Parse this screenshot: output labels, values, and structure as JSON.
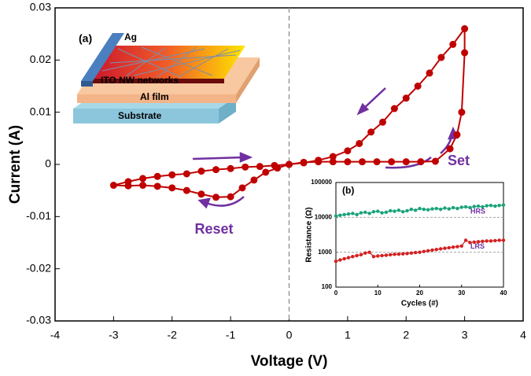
{
  "chart_data": [
    {
      "type": "line",
      "x_label": "Voltage (V)",
      "y_label": "Current (A)",
      "xlim": [
        -4,
        4
      ],
      "xticks": [
        -4,
        -3,
        -2,
        -1,
        0,
        1,
        2,
        3,
        4
      ],
      "ylim": [
        -0.03,
        0.03
      ],
      "yticks": [
        -0.03,
        -0.02,
        -0.01,
        0,
        0.01,
        0.02,
        0.03
      ],
      "vlines": [
        0
      ],
      "x": [
        0,
        0.25,
        0.5,
        0.75,
        1.0,
        1.25,
        1.5,
        1.75,
        2.0,
        2.25,
        2.5,
        2.75,
        2.87,
        2.95,
        3.0,
        3.0,
        2.8,
        2.6,
        2.4,
        2.2,
        2.0,
        1.8,
        1.6,
        1.4,
        1.2,
        1.0,
        0.75,
        0.5,
        0.25,
        0,
        -0.2,
        -0.4,
        -0.6,
        -0.8,
        -1.0,
        -1.25,
        -1.5,
        -1.75,
        -2.0,
        -2.25,
        -2.5,
        -2.75,
        -3.0,
        -2.75,
        -2.5,
        -2.25,
        -2.0,
        -1.75,
        -1.5,
        -1.25,
        -1.0,
        -0.75,
        -0.5,
        -0.25,
        0
      ],
      "series": [
        {
          "color": "#c00000",
          "values": [
            0,
            0.0004,
            0.0005,
            0.0005,
            0.0005,
            0.0005,
            0.0005,
            0.0005,
            0.0005,
            0.0005,
            0.0006,
            0.003,
            0.0057,
            0.01,
            0.0214,
            0.026,
            0.023,
            0.0205,
            0.0175,
            0.015,
            0.0127,
            0.0107,
            0.0081,
            0.0062,
            0.004,
            0.0026,
            0.0015,
            0.0008,
            0.0003,
            0,
            -0.0007,
            -0.0015,
            -0.003,
            -0.0045,
            -0.0062,
            -0.0063,
            -0.0057,
            -0.005,
            -0.0045,
            -0.0042,
            -0.004,
            -0.0041,
            -0.004,
            -0.0033,
            -0.0027,
            -0.0023,
            -0.002,
            -0.0018,
            -0.0013,
            -0.001,
            -0.0008,
            -0.0005,
            -0.0004,
            -0.0002,
            0
          ]
        }
      ],
      "annotations": [
        "Set",
        "Reset"
      ]
    },
    {
      "type": "line",
      "label": "(b)",
      "x_label": "Cycles (#)",
      "y_label": "Resistance (Ω)",
      "log_y": true,
      "xlim": [
        0,
        40
      ],
      "xticks": [
        0,
        10,
        20,
        30,
        40
      ],
      "ylim": [
        100,
        100000
      ],
      "yticks": [
        100,
        1000,
        10000,
        100000
      ],
      "hlines": [
        10000,
        1000
      ],
      "x": [
        0,
        1,
        2,
        3,
        4,
        5,
        6,
        7,
        8,
        9,
        10,
        11,
        12,
        13,
        14,
        15,
        16,
        17,
        18,
        19,
        20,
        21,
        22,
        23,
        24,
        25,
        26,
        27,
        28,
        29,
        30,
        31,
        32,
        33,
        34,
        35,
        36,
        37,
        38,
        39,
        40
      ],
      "series": [
        {
          "name": "HRS",
          "color": "#1aa37a",
          "values": [
            11000,
            11500,
            12000,
            12500,
            13000,
            12000,
            13500,
            14000,
            13000,
            14500,
            15000,
            13500,
            14000,
            15500,
            15000,
            16000,
            14500,
            15500,
            17000,
            16000,
            18000,
            17000,
            16500,
            17500,
            18000,
            17000,
            18500,
            17500,
            19000,
            18000,
            19500,
            20000,
            19000,
            20500,
            21000,
            20000,
            21500,
            22000,
            21000,
            22000,
            22500
          ]
        },
        {
          "name": "LRS",
          "color": "#d42020",
          "values": [
            550,
            600,
            650,
            700,
            750,
            800,
            850,
            950,
            1000,
            750,
            780,
            800,
            820,
            850,
            870,
            880,
            900,
            920,
            950,
            980,
            1000,
            1050,
            1100,
            1150,
            1200,
            1250,
            1300,
            1350,
            1400,
            1450,
            1500,
            2200,
            1900,
            1950,
            2000,
            2050,
            2100,
            2100,
            2150,
            2200,
            2200
          ]
        }
      ]
    }
  ],
  "diagram": {
    "label": "(a)",
    "layers": [
      "Ag",
      "ITO NW networks",
      "Al film",
      "Substrate"
    ]
  }
}
